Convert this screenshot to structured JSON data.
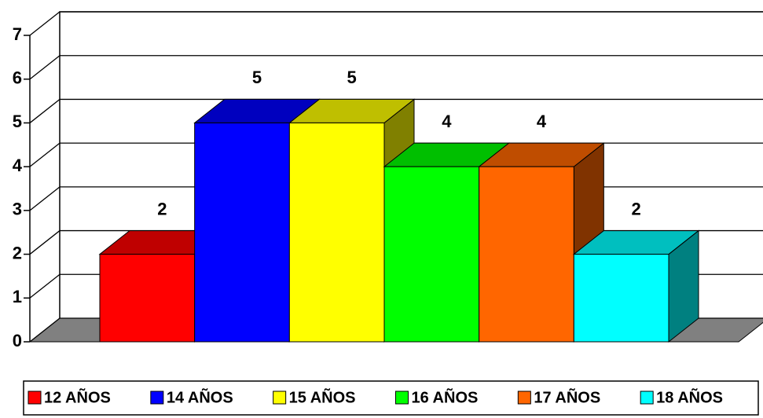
{
  "chart_data": {
    "type": "bar3d",
    "series": [
      {
        "name": "12 AÑOS",
        "color": "#ff0000",
        "values": [
          2
        ]
      },
      {
        "name": "14 AÑOS",
        "color": "#0000ff",
        "values": [
          5
        ]
      },
      {
        "name": "15 AÑOS",
        "color": "#ffff00",
        "values": [
          5
        ]
      },
      {
        "name": "16 AÑOS",
        "color": "#00ff00",
        "values": [
          4
        ]
      },
      {
        "name": "17 AÑOS",
        "color": "#ff6600",
        "values": [
          4
        ]
      },
      {
        "name": "18 AÑOS",
        "color": "#00ffff",
        "values": [
          2
        ]
      }
    ],
    "ylim": [
      0,
      7
    ],
    "yticks": [
      0,
      1,
      2,
      3,
      4,
      5,
      6,
      7
    ],
    "grid": true,
    "legend": "bottom"
  }
}
